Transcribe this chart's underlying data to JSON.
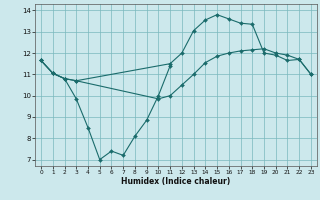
{
  "xlabel": "Humidex (Indice chaleur)",
  "bg_color": "#cce8ec",
  "grid_color": "#7ab8be",
  "line_color": "#1a6b6b",
  "xlim": [
    -0.5,
    23.5
  ],
  "ylim": [
    6.7,
    14.3
  ],
  "xticks": [
    0,
    1,
    2,
    3,
    4,
    5,
    6,
    7,
    8,
    9,
    10,
    11,
    12,
    13,
    14,
    15,
    16,
    17,
    18,
    19,
    20,
    21,
    22,
    23
  ],
  "yticks": [
    7,
    8,
    9,
    10,
    11,
    12,
    13,
    14
  ],
  "curve1": {
    "x": [
      0,
      1,
      2,
      3,
      4,
      5,
      6,
      7,
      8,
      9,
      10,
      11
    ],
    "y": [
      11.65,
      11.05,
      10.8,
      9.85,
      8.5,
      7.0,
      7.4,
      7.2,
      8.1,
      8.85,
      10.0,
      11.4
    ]
  },
  "curve2": {
    "x": [
      0,
      1,
      2,
      3,
      11,
      12,
      13,
      14,
      15,
      16,
      17,
      18,
      19,
      20,
      21,
      22,
      23
    ],
    "y": [
      11.65,
      11.05,
      10.8,
      10.7,
      11.5,
      12.0,
      13.05,
      13.55,
      13.8,
      13.6,
      13.4,
      13.35,
      12.0,
      11.9,
      11.65,
      11.7,
      11.0
    ]
  },
  "curve3": {
    "x": [
      0,
      1,
      2,
      3,
      10,
      11,
      12,
      13,
      14,
      15,
      16,
      17,
      18,
      19,
      20,
      21,
      22,
      23
    ],
    "y": [
      11.65,
      11.05,
      10.8,
      10.7,
      9.85,
      10.0,
      10.5,
      11.0,
      11.55,
      11.85,
      12.0,
      12.1,
      12.15,
      12.2,
      12.0,
      11.9,
      11.7,
      11.0
    ]
  }
}
